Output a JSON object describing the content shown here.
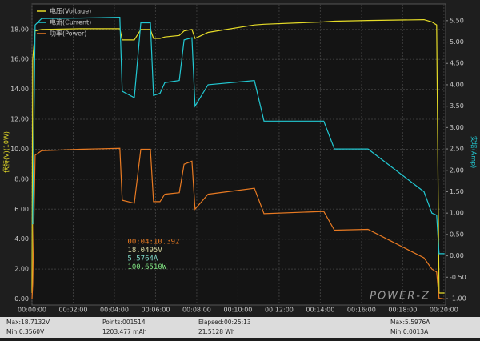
{
  "chart_data": {
    "type": "line",
    "ylabel": "伏特(V)(10W)",
    "y2label": "安培(Amp)",
    "xlim": [
      0,
      1205
    ],
    "ylim": [
      -0.4,
      19.7
    ],
    "y2lim": [
      -1.15,
      5.89
    ],
    "grid": true,
    "xticks": [
      {
        "value": 0,
        "label": "00:00:00"
      },
      {
        "value": 120,
        "label": "00:02:00"
      },
      {
        "value": 240,
        "label": "00:04:00"
      },
      {
        "value": 360,
        "label": "00:06:00"
      },
      {
        "value": 480,
        "label": "00:08:00"
      },
      {
        "value": 600,
        "label": "00:10:00"
      },
      {
        "value": 720,
        "label": "00:12:00"
      },
      {
        "value": 840,
        "label": "00:14:00"
      },
      {
        "value": 960,
        "label": "00:16:00"
      },
      {
        "value": 1080,
        "label": "00:18:00"
      },
      {
        "value": 1200,
        "label": "00:20:00"
      }
    ],
    "yticks": [
      {
        "value": 0,
        "label": "0.00"
      },
      {
        "value": 2,
        "label": "2.00"
      },
      {
        "value": 4,
        "label": "4.00"
      },
      {
        "value": 6,
        "label": "6.00"
      },
      {
        "value": 8,
        "label": "8.00"
      },
      {
        "value": 10,
        "label": "10.00"
      },
      {
        "value": 12,
        "label": "12.00"
      },
      {
        "value": 14,
        "label": "14.00"
      },
      {
        "value": 16,
        "label": "16.00"
      },
      {
        "value": 18,
        "label": "18.00"
      }
    ],
    "y2ticks": [
      {
        "value": -1,
        "label": "-1.00"
      },
      {
        "value": -0.5,
        "label": "-0.50"
      },
      {
        "value": 0,
        "label": "0.00"
      },
      {
        "value": 0.5,
        "label": "0.50"
      },
      {
        "value": 1,
        "label": "1.00"
      },
      {
        "value": 1.5,
        "label": "1.50"
      },
      {
        "value": 2,
        "label": "2.00"
      },
      {
        "value": 2.5,
        "label": "2.50"
      },
      {
        "value": 3,
        "label": "3.00"
      },
      {
        "value": 3.5,
        "label": "3.50"
      },
      {
        "value": 4,
        "label": "4.00"
      },
      {
        "value": 4.5,
        "label": "4.50"
      },
      {
        "value": 5,
        "label": "5.00"
      },
      {
        "value": 5.5,
        "label": "5.50"
      }
    ],
    "x": [
      0,
      2,
      9,
      28,
      140,
      256,
      263,
      298,
      317,
      345,
      354,
      373,
      387,
      429,
      443,
      466,
      475,
      513,
      648,
      676,
      850,
      881,
      979,
      1142,
      1165,
      1179,
      1186,
      1202
    ],
    "series": [
      {
        "name": "电压(Voltage)",
        "color": "#e6dc28",
        "values": [
          0.4,
          16.0,
          17.9,
          18.0,
          18.05,
          18.05,
          17.3,
          17.3,
          18.0,
          18.0,
          17.4,
          17.4,
          17.5,
          17.6,
          17.9,
          18.0,
          17.4,
          17.8,
          18.3,
          18.35,
          18.5,
          18.55,
          18.6,
          18.65,
          18.5,
          18.3,
          0.4,
          0.4
        ]
      },
      {
        "name": "电流(Current)",
        "color": "#22c8d2",
        "axis": "y2",
        "values": [
          0.75,
          0.75,
          5.4,
          5.55,
          5.56,
          5.58,
          3.85,
          3.7,
          5.45,
          5.45,
          3.75,
          3.8,
          4.05,
          4.1,
          5.05,
          5.1,
          3.5,
          4.0,
          4.1,
          3.15,
          3.15,
          2.5,
          2.5,
          1.5,
          1.0,
          0.95,
          0.05,
          0.05
        ]
      },
      {
        "name": "功率(Power)",
        "color": "#e87a22",
        "values": [
          0,
          1.0,
          9.6,
          9.9,
          10.0,
          10.06,
          6.6,
          6.4,
          10.0,
          10.0,
          6.5,
          6.5,
          7.0,
          7.1,
          9.0,
          9.2,
          6.0,
          7.0,
          7.4,
          5.7,
          5.85,
          4.6,
          4.65,
          2.75,
          2.0,
          1.8,
          0.05,
          0
        ]
      }
    ],
    "cursor": {
      "x": 250.392,
      "color": "#e87a22",
      "lines": [
        {
          "text": "00:04:10.392",
          "color": "#e87a22"
        },
        {
          "text": "18.0495V",
          "color": "#d8d8a0"
        },
        {
          "text": "5.5764A",
          "color": "#7ed8c8"
        },
        {
          "text": "100.6510W",
          "color": "#7ee080"
        }
      ]
    }
  },
  "logo": "POWER-Z",
  "status_bar": {
    "columns": [
      [
        "Max:18.7132V",
        "Min:0.3560V"
      ],
      [
        "Points:001514",
        "1203.477 mAh"
      ],
      [
        "Elapsed:00:25:13",
        "21.5128 Wh"
      ],
      [
        "Max:5.5976A",
        "Min:0.0013A"
      ]
    ]
  }
}
